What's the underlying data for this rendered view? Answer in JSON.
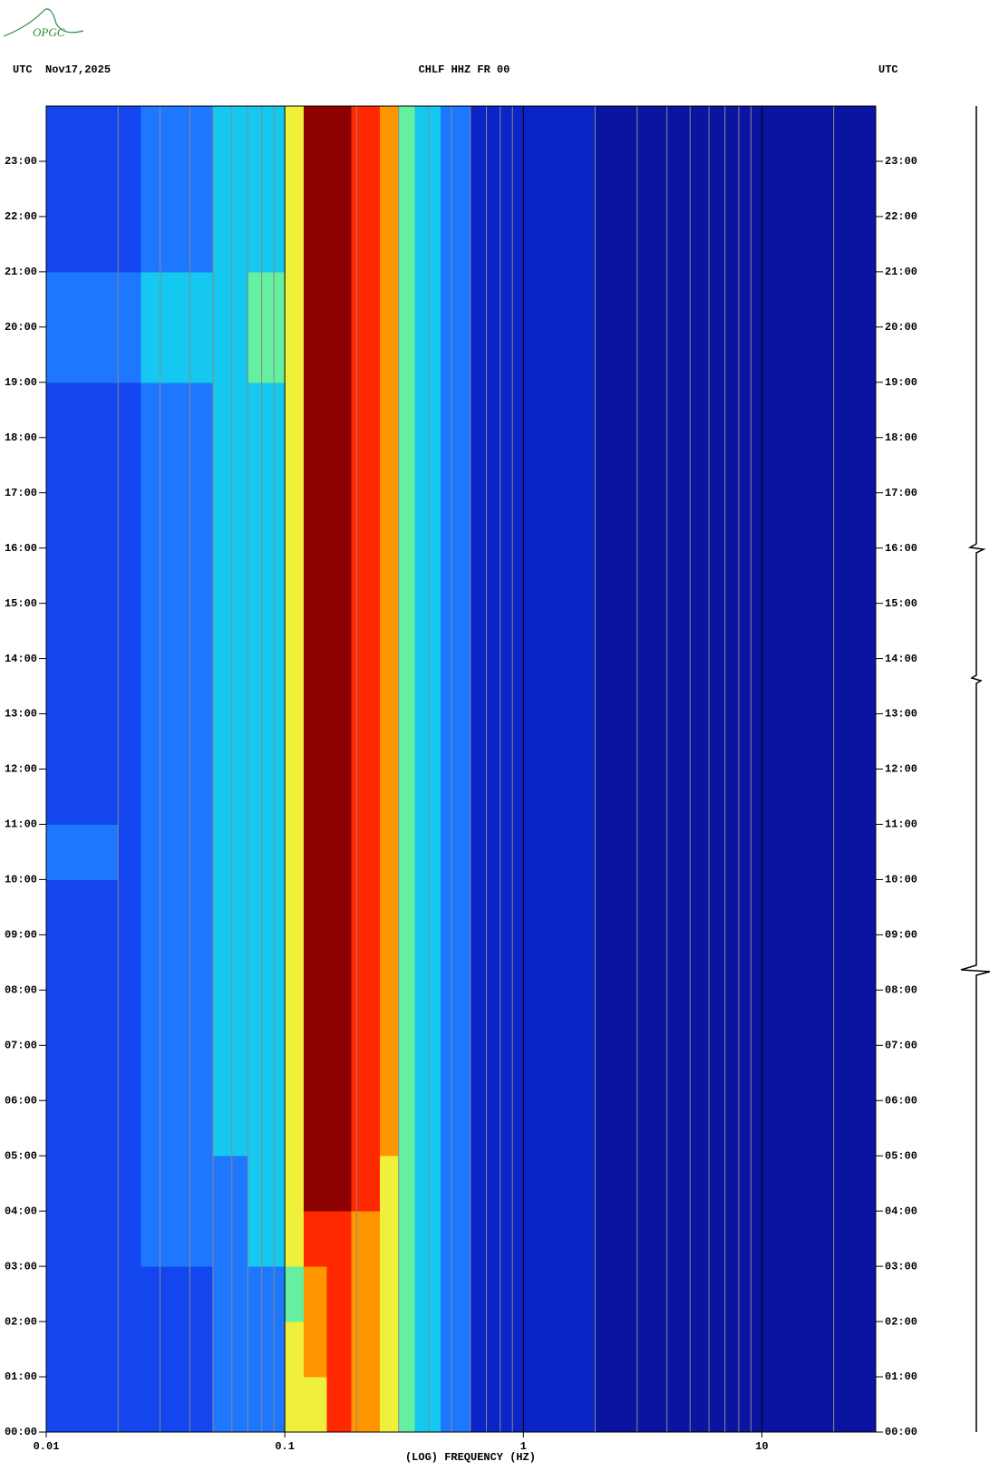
{
  "logo": "OPGC",
  "chart_data": {
    "type": "heatmap",
    "title": "CHLF HHZ FR 00",
    "left_header": "UTC  Nov17,2025",
    "right_header": "UTC",
    "x_label": "(LOG) FREQUENCY (HZ)",
    "x_log": true,
    "xlim": [
      0.01,
      30
    ],
    "xticks": [
      0.01,
      0.1,
      1,
      10
    ],
    "xgrid": [
      0.02,
      0.03,
      0.04,
      0.05,
      0.06,
      0.07,
      0.08,
      0.09,
      0.2,
      0.3,
      0.4,
      0.5,
      0.6,
      0.7,
      0.8,
      0.9,
      2,
      3,
      4,
      5,
      6,
      7,
      8,
      9,
      20
    ],
    "ylim": [
      0,
      24
    ],
    "yticks": [
      {
        "value": 0,
        "label": "00:00"
      },
      {
        "value": 1,
        "label": "01:00"
      },
      {
        "value": 2,
        "label": "02:00"
      },
      {
        "value": 3,
        "label": "03:00"
      },
      {
        "value": 4,
        "label": "04:00"
      },
      {
        "value": 5,
        "label": "05:00"
      },
      {
        "value": 6,
        "label": "06:00"
      },
      {
        "value": 7,
        "label": "07:00"
      },
      {
        "value": 8,
        "label": "08:00"
      },
      {
        "value": 9,
        "label": "09:00"
      },
      {
        "value": 10,
        "label": "10:00"
      },
      {
        "value": 11,
        "label": "11:00"
      },
      {
        "value": 12,
        "label": "12:00"
      },
      {
        "value": 13,
        "label": "13:00"
      },
      {
        "value": 14,
        "label": "14:00"
      },
      {
        "value": 15,
        "label": "15:00"
      },
      {
        "value": 16,
        "label": "16:00"
      },
      {
        "value": 17,
        "label": "17:00"
      },
      {
        "value": 18,
        "label": "18:00"
      },
      {
        "value": 19,
        "label": "19:00"
      },
      {
        "value": 20,
        "label": "20:00"
      },
      {
        "value": 21,
        "label": "21:00"
      },
      {
        "value": 22,
        "label": "22:00"
      },
      {
        "value": 23,
        "label": "23:00"
      }
    ],
    "xbins": [
      0.01,
      0.02,
      0.025,
      0.05,
      0.07,
      0.1,
      0.12,
      0.15,
      0.19,
      0.25,
      0.3,
      0.35,
      0.45,
      0.6,
      1,
      2,
      30
    ],
    "ybins": [
      0,
      1,
      2,
      3,
      4,
      5,
      6,
      7,
      8,
      9,
      10,
      11,
      12,
      13,
      14,
      15,
      16,
      17,
      18,
      19,
      20,
      21,
      22,
      23,
      24
    ],
    "colormap": [
      "#0a14a0",
      "#0a24c8",
      "#1446f0",
      "#1e78ff",
      "#14c8f0",
      "#64f0a0",
      "#f0f03c",
      "#ff9600",
      "#ff2800",
      "#8c0000"
    ],
    "values": [
      [
        2,
        2,
        2,
        3,
        3,
        6,
        6,
        8,
        7,
        6,
        5,
        4,
        3,
        1,
        1,
        0
      ],
      [
        2,
        2,
        2,
        3,
        3,
        6,
        7,
        8,
        7,
        6,
        5,
        4,
        3,
        1,
        1,
        0
      ],
      [
        2,
        2,
        2,
        3,
        3,
        5,
        7,
        8,
        7,
        6,
        5,
        4,
        3,
        1,
        1,
        0
      ],
      [
        2,
        2,
        3,
        3,
        4,
        6,
        8,
        8,
        7,
        6,
        5,
        4,
        3,
        1,
        1,
        0
      ],
      [
        2,
        2,
        3,
        3,
        4,
        6,
        9,
        9,
        8,
        6,
        5,
        4,
        3,
        1,
        1,
        0
      ],
      [
        2,
        2,
        3,
        4,
        4,
        6,
        9,
        9,
        8,
        7,
        5,
        4,
        3,
        1,
        1,
        0
      ],
      [
        2,
        2,
        3,
        4,
        4,
        6,
        9,
        9,
        8,
        7,
        5,
        4,
        3,
        1,
        1,
        0
      ],
      [
        2,
        2,
        3,
        4,
        4,
        6,
        9,
        9,
        8,
        7,
        5,
        4,
        3,
        1,
        1,
        0
      ],
      [
        2,
        2,
        3,
        4,
        4,
        6,
        9,
        9,
        8,
        7,
        5,
        4,
        3,
        1,
        1,
        0
      ],
      [
        2,
        2,
        3,
        4,
        4,
        6,
        9,
        9,
        8,
        7,
        5,
        4,
        3,
        1,
        1,
        0
      ],
      [
        3,
        2,
        3,
        4,
        4,
        6,
        9,
        9,
        8,
        7,
        5,
        4,
        3,
        1,
        1,
        0
      ],
      [
        2,
        2,
        3,
        4,
        4,
        6,
        9,
        9,
        8,
        7,
        5,
        4,
        3,
        1,
        1,
        0
      ],
      [
        2,
        2,
        3,
        4,
        4,
        6,
        9,
        9,
        8,
        7,
        5,
        4,
        3,
        1,
        1,
        0
      ],
      [
        2,
        2,
        3,
        4,
        4,
        6,
        9,
        9,
        8,
        7,
        5,
        4,
        3,
        1,
        1,
        0
      ],
      [
        2,
        2,
        3,
        4,
        4,
        6,
        9,
        9,
        8,
        7,
        5,
        4,
        3,
        1,
        1,
        0
      ],
      [
        2,
        2,
        3,
        4,
        4,
        6,
        9,
        9,
        8,
        7,
        5,
        4,
        3,
        1,
        1,
        0
      ],
      [
        2,
        2,
        3,
        4,
        4,
        6,
        9,
        9,
        8,
        7,
        5,
        4,
        3,
        1,
        1,
        0
      ],
      [
        2,
        2,
        3,
        4,
        4,
        6,
        9,
        9,
        8,
        7,
        5,
        4,
        3,
        1,
        1,
        0
      ],
      [
        2,
        2,
        3,
        4,
        4,
        6,
        9,
        9,
        8,
        7,
        5,
        4,
        3,
        1,
        1,
        0
      ],
      [
        3,
        3,
        4,
        4,
        5,
        6,
        9,
        9,
        8,
        7,
        5,
        4,
        3,
        1,
        1,
        0
      ],
      [
        3,
        3,
        4,
        4,
        5,
        6,
        9,
        9,
        8,
        7,
        5,
        4,
        3,
        1,
        1,
        0
      ],
      [
        2,
        2,
        3,
        4,
        4,
        6,
        9,
        9,
        8,
        7,
        5,
        4,
        3,
        1,
        1,
        0
      ],
      [
        2,
        2,
        3,
        4,
        4,
        6,
        9,
        9,
        8,
        7,
        5,
        4,
        3,
        1,
        1,
        0
      ],
      [
        2,
        2,
        3,
        4,
        4,
        6,
        9,
        9,
        8,
        7,
        5,
        4,
        3,
        1,
        1,
        0
      ]
    ]
  }
}
